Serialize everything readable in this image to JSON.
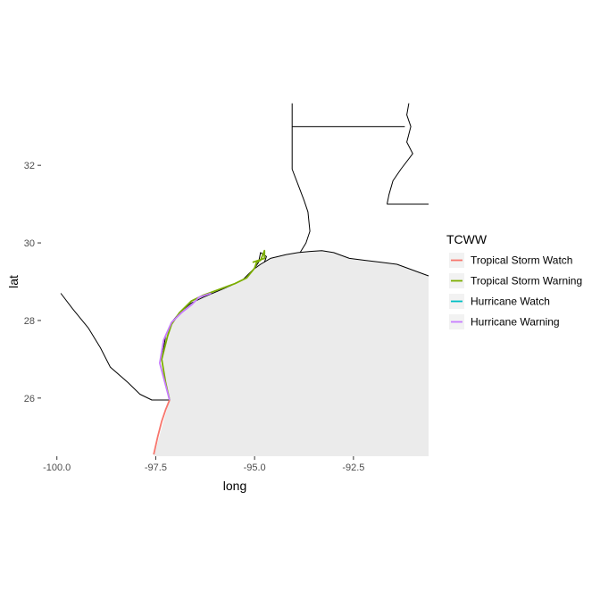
{
  "chart_data": {
    "type": "line",
    "title": "",
    "xlabel": "long",
    "ylabel": "lat",
    "xlim": [
      -100.4,
      -90.6
    ],
    "ylim": [
      24.5,
      33.5
    ],
    "x_ticks": [
      -100.0,
      -97.5,
      -95.0,
      -92.5
    ],
    "x_tick_labels": [
      "-100.0",
      "-97.5",
      "-95.0",
      "-92.5"
    ],
    "y_ticks": [
      26,
      28,
      30,
      32
    ],
    "y_tick_labels": [
      "26",
      "28",
      "30",
      "32"
    ],
    "grid": true,
    "legend_title": "TCWW",
    "legend_position": "right",
    "series": [
      {
        "name": "Tropical Storm Watch",
        "color": "#F8766D",
        "x": [
          -97.55,
          -97.45,
          -97.35,
          -97.25,
          -97.15
        ],
        "y": [
          24.55,
          25.0,
          25.4,
          25.7,
          25.95
        ]
      },
      {
        "name": "Tropical Storm Warning",
        "color": "#7CAE00",
        "x": [
          -97.15,
          -97.25,
          -97.35,
          -97.2,
          -97.1,
          -96.9,
          -96.6,
          -96.3,
          -95.9,
          -95.5,
          -95.2,
          -95.0,
          -94.95,
          -94.85,
          -94.75,
          -94.75,
          -95.05
        ],
        "y": [
          25.95,
          26.4,
          27.0,
          27.6,
          27.9,
          28.2,
          28.5,
          28.65,
          28.8,
          28.95,
          29.1,
          29.35,
          29.5,
          29.55,
          29.8,
          29.6,
          29.5
        ]
      },
      {
        "name": "Hurricane Watch",
        "color": "#00BFC4",
        "x": [],
        "y": []
      },
      {
        "name": "Hurricane Warning",
        "color": "#C77CFF",
        "x": [
          -97.15,
          -97.4,
          -97.3,
          -97.1,
          -96.85,
          -96.6,
          -96.4,
          -96.1
        ],
        "y": [
          25.95,
          26.9,
          27.5,
          27.95,
          28.2,
          28.4,
          28.6,
          28.7
        ]
      }
    ]
  },
  "map": {
    "coast": [
      [
        -99.9,
        28.7
      ],
      [
        -99.6,
        28.3
      ],
      [
        -99.2,
        27.8
      ],
      [
        -98.9,
        27.3
      ],
      [
        -98.65,
        26.8
      ],
      [
        -98.2,
        26.4
      ],
      [
        -97.9,
        26.1
      ],
      [
        -97.6,
        25.95
      ],
      [
        -97.15,
        25.95
      ],
      [
        -97.25,
        25.7
      ],
      [
        -97.35,
        25.4
      ],
      [
        -97.45,
        25.0
      ],
      [
        -97.55,
        24.55
      ]
    ],
    "coast_upper": [
      [
        -97.15,
        25.95
      ],
      [
        -97.25,
        26.4
      ],
      [
        -97.35,
        27.0
      ],
      [
        -97.25,
        27.6
      ],
      [
        -97.1,
        27.95
      ],
      [
        -96.9,
        28.2
      ],
      [
        -96.6,
        28.45
      ],
      [
        -96.3,
        28.6
      ],
      [
        -95.95,
        28.75
      ],
      [
        -95.6,
        28.9
      ],
      [
        -95.3,
        29.05
      ],
      [
        -95.05,
        29.3
      ],
      [
        -94.85,
        29.45
      ],
      [
        -94.6,
        29.6
      ],
      [
        -94.2,
        29.7
      ],
      [
        -93.9,
        29.75
      ],
      [
        -93.6,
        29.78
      ],
      [
        -93.3,
        29.8
      ],
      [
        -93.0,
        29.75
      ],
      [
        -92.6,
        29.6
      ],
      [
        -92.2,
        29.55
      ],
      [
        -91.8,
        29.5
      ],
      [
        -91.4,
        29.45
      ],
      [
        -91.0,
        29.3
      ],
      [
        -90.6,
        29.15
      ]
    ],
    "sabine_river": [
      [
        -93.85,
        29.75
      ],
      [
        -93.7,
        30.0
      ],
      [
        -93.6,
        30.3
      ],
      [
        -93.65,
        30.8
      ],
      [
        -93.75,
        31.1
      ],
      [
        -93.9,
        31.5
      ],
      [
        -94.05,
        31.9
      ],
      [
        -94.05,
        32.4
      ],
      [
        -94.05,
        33.6
      ]
    ],
    "ark_border": [
      [
        -94.05,
        33.0
      ],
      [
        -91.2,
        33.0
      ]
    ],
    "miss_river": [
      [
        -91.1,
        33.6
      ],
      [
        -91.15,
        33.3
      ],
      [
        -91.05,
        33.0
      ],
      [
        -91.15,
        32.6
      ],
      [
        -91.0,
        32.3
      ],
      [
        -91.3,
        31.9
      ],
      [
        -91.5,
        31.6
      ],
      [
        -91.6,
        31.25
      ],
      [
        -91.65,
        31.0
      ]
    ],
    "la_ms_border": [
      [
        -91.65,
        31.0
      ],
      [
        -90.6,
        31.0
      ]
    ],
    "galveston_bay": [
      [
        -95.0,
        29.35
      ],
      [
        -94.9,
        29.5
      ],
      [
        -94.85,
        29.75
      ],
      [
        -94.7,
        29.65
      ],
      [
        -94.75,
        29.5
      ]
    ]
  }
}
